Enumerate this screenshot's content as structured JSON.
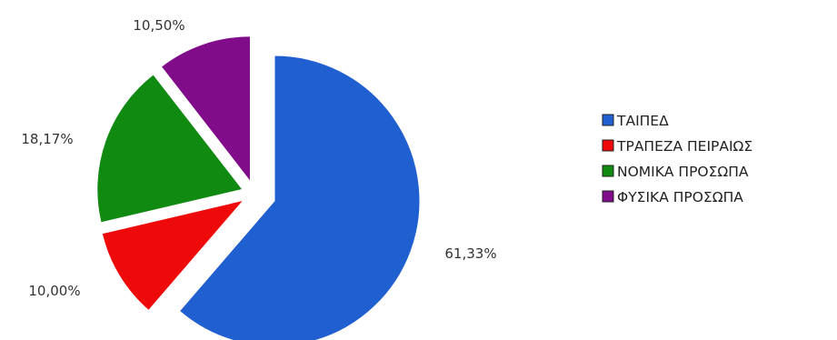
{
  "chart_data": {
    "type": "pie",
    "title": "",
    "categories": [
      "ΤΑΙΠΕΔ",
      "ΤΡΑΠΕΖΑ ΠΕΙΡΑΙΩΣ",
      "ΝΟΜΙΚΑ ΠΡΟΣΩΠΑ",
      "ΦΥΣΙΚΑ ΠΡΟΣΩΠΑ"
    ],
    "values": [
      61.33,
      10.0,
      18.17,
      10.5
    ],
    "value_labels": [
      "61,33%",
      "10,00%",
      "18,17%",
      "10,50%"
    ],
    "colors": [
      "#1f5fd0",
      "#ee0a0a",
      "#108a10",
      "#800c8a"
    ],
    "exploded_slices": [
      "ΤΡΑΠΕΖΑ ΠΕΙΡΑΙΩΣ",
      "ΝΟΜΙΚΑ ΠΡΟΣΩΠΑ",
      "ΦΥΣΙΚΑ ΠΡΟΣΩΠΑ"
    ],
    "legend_position": "right",
    "grid": false
  }
}
